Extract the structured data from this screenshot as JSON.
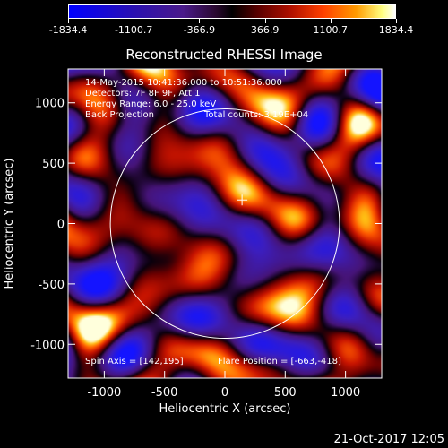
{
  "colorbar": {
    "tick_labels": [
      "-1834.4",
      "-1100.7",
      "-366.9",
      "366.9",
      "1100.7",
      "1834.4"
    ],
    "min": -1834.4,
    "max": 1834.4
  },
  "chart_data": {
    "type": "heatmap",
    "title": "Reconstructed RHESSI Image",
    "xlabel": "Heliocentric X (arcsec)",
    "ylabel": "Heliocentric Y (arcsec)",
    "xlim": [
      -1300,
      1300
    ],
    "ylim": [
      -1280,
      1280
    ],
    "x_ticks": [
      -1000,
      -500,
      0,
      500,
      1000
    ],
    "y_ticks": [
      -1000,
      -500,
      0,
      500,
      1000
    ],
    "x_tick_labels": [
      "-1000",
      "-500",
      "0",
      "500",
      "1000"
    ],
    "y_tick_labels": [
      "-1000",
      "-500",
      "0",
      "500",
      "1000"
    ],
    "solar_limb_radius": 950,
    "flare_marker": [
      142,
      195
    ],
    "annotations": {
      "time_range": "14-May-2015 10:41:36.000 to 10:51:36.000",
      "detectors": "Detectors: 7F 8F 9F, Att 1",
      "energy_range": "Energy Range: 6.0 - 25.0 keV",
      "method": "Back Projection",
      "total_counts": "Total counts: 3.19E+04",
      "spin_axis": "Spin Axis = [142,195]",
      "flare_position": "Flare Position = [-663,-418]"
    }
  },
  "footer": {
    "date": "21-Oct-2017 12:05"
  }
}
